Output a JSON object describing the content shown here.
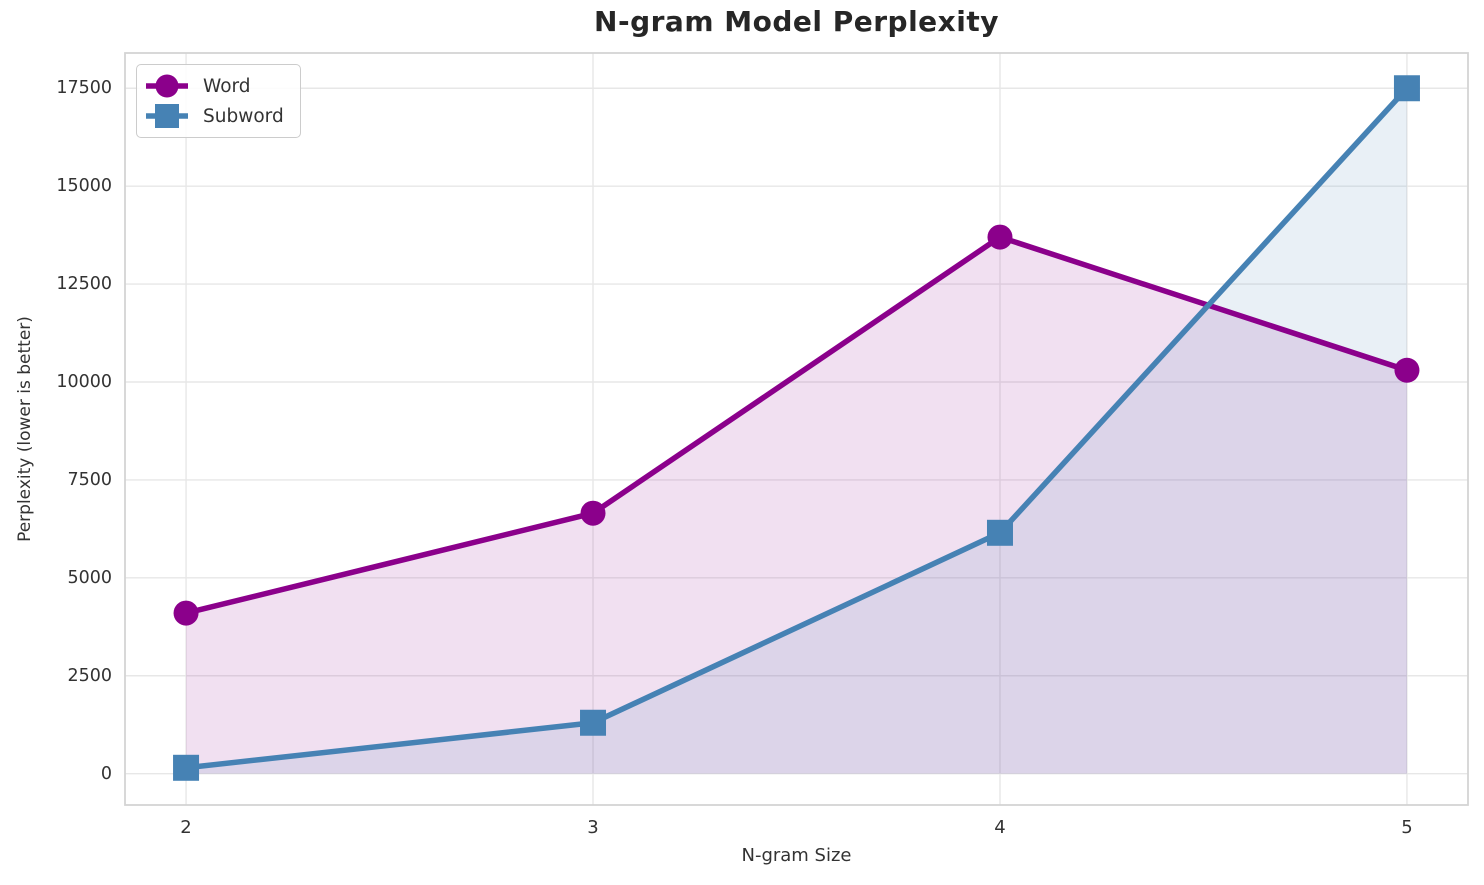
{
  "chart_data": {
    "type": "line",
    "title": "N-gram Model Perplexity",
    "xlabel": "N-gram Size",
    "ylabel": "Perplexity (lower is better)",
    "x": [
      2,
      3,
      4,
      5
    ],
    "x_tick_labels": [
      "2",
      "3",
      "4",
      "5"
    ],
    "y_ticks": [
      0,
      2500,
      5000,
      7500,
      10000,
      12500,
      15000,
      17500
    ],
    "y_tick_labels": [
      "0",
      "2500",
      "5000",
      "7500",
      "10000",
      "12500",
      "15000",
      "17500"
    ],
    "xlim": [
      1.85,
      5.15
    ],
    "ylim": [
      -800,
      18400
    ],
    "grid": true,
    "area_baseline": 0,
    "legend_position": "upper-left",
    "series": [
      {
        "name": "Word",
        "marker": "circle",
        "color": "#8B008B",
        "fill_opacity": 0.12,
        "values": [
          4100,
          6650,
          13700,
          10300
        ]
      },
      {
        "name": "Subword",
        "marker": "square",
        "color": "#4682B4",
        "fill_opacity": 0.12,
        "values": [
          150,
          1300,
          6150,
          17500
        ]
      }
    ]
  },
  "colors": {
    "grid": "#E7E7E7",
    "spine": "#D4D4D4",
    "tick_text": "#333333",
    "title_text": "#262626",
    "background": "#FFFFFF"
  }
}
